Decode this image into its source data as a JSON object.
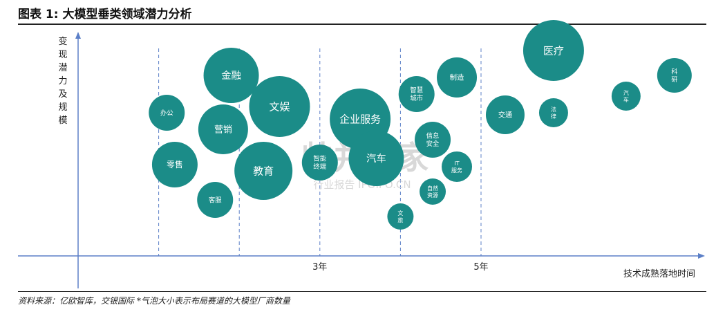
{
  "title": "图表 1: 大模型垂类领域潜力分析",
  "source_note": "资料来源：亿欧智库，交银国际  *气泡大小表示布局赛道的大模型厂商数量",
  "watermark": {
    "main": "帅并购家",
    "sub": "行业报告 IPOIPO.CN"
  },
  "colors": {
    "bubble": "#1b8c88",
    "axis": "#5b7fc7",
    "guide": "#5b7fc7",
    "label": "#ffffff"
  },
  "chart_data": {
    "type": "bubble",
    "xlabel": "技术成熟落地时间",
    "ylabel": "变现潜力及规模",
    "x_ticks": [
      {
        "value": 3,
        "label": "3年"
      },
      {
        "value": 5,
        "label": "5年"
      }
    ],
    "xlim": [
      0,
      8.0
    ],
    "ylim": [
      0,
      10
    ],
    "guide_lines_at": [
      1,
      2,
      3,
      4,
      5
    ],
    "grid": false,
    "size_meaning": "布局赛道的大模型厂商数量",
    "points": [
      {
        "label": "办公",
        "x": 1.1,
        "y": 6.9,
        "size": 2.6
      },
      {
        "label": "零售",
        "x": 1.2,
        "y": 4.4,
        "size": 3.3
      },
      {
        "label": "金融",
        "x": 1.9,
        "y": 8.7,
        "size": 4.0
      },
      {
        "label": "营销",
        "x": 1.8,
        "y": 6.1,
        "size": 3.6
      },
      {
        "label": "客服",
        "x": 1.7,
        "y": 2.7,
        "size": 2.6
      },
      {
        "label": "文娱",
        "x": 2.5,
        "y": 7.2,
        "size": 4.4
      },
      {
        "label": "教育",
        "x": 2.3,
        "y": 4.1,
        "size": 4.2
      },
      {
        "label": "智能终端",
        "x": 3.0,
        "y": 4.5,
        "size": 2.6
      },
      {
        "label": "企业服务",
        "x": 3.5,
        "y": 6.6,
        "size": 4.4
      },
      {
        "label": "汽车",
        "x": 3.7,
        "y": 4.7,
        "size": 4.0
      },
      {
        "label": "智慧城市",
        "x": 4.2,
        "y": 7.8,
        "size": 2.6
      },
      {
        "label": "制造",
        "x": 4.7,
        "y": 8.6,
        "size": 2.9
      },
      {
        "label": "信息安全",
        "x": 4.4,
        "y": 5.6,
        "size": 2.6
      },
      {
        "label": "IT服务",
        "x": 4.7,
        "y": 4.3,
        "size": 2.2
      },
      {
        "label": "自然资源",
        "x": 4.4,
        "y": 3.1,
        "size": 1.9
      },
      {
        "label": "文旅",
        "x": 4.0,
        "y": 1.9,
        "size": 1.9
      },
      {
        "label": "交通",
        "x": 5.3,
        "y": 6.8,
        "size": 2.8
      },
      {
        "label": "医疗",
        "x": 5.9,
        "y": 9.9,
        "size": 4.4
      },
      {
        "label": "法律",
        "x": 5.9,
        "y": 6.9,
        "size": 2.1
      },
      {
        "label": "汽车",
        "x": 6.8,
        "y": 7.7,
        "size": 2.1
      },
      {
        "label": "科研",
        "x": 7.4,
        "y": 8.7,
        "size": 2.5
      }
    ]
  }
}
